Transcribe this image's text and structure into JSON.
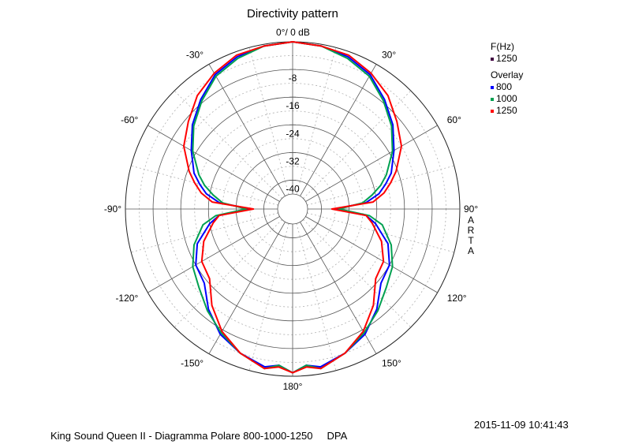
{
  "chart_data": {
    "type": "polar",
    "title": "Directivity pattern",
    "radial_unit_label": "0°/ 0 dB",
    "radial_ticks": [
      "-8",
      "-16",
      "-24",
      "-32",
      "-40"
    ],
    "radial_tick_values": [
      -8,
      -16,
      -24,
      -32,
      -40
    ],
    "r_range_db": [
      -44,
      0
    ],
    "angle_labels": [
      {
        "text": "-30°",
        "angle": -30
      },
      {
        "text": "30°",
        "angle": 30
      },
      {
        "text": "-60°",
        "angle": -60
      },
      {
        "text": "60°",
        "angle": 60
      },
      {
        "text": "-90°",
        "angle": -90
      },
      {
        "text": "90°",
        "angle": 90
      },
      {
        "text": "-120°",
        "angle": -120
      },
      {
        "text": "120°",
        "angle": 120
      },
      {
        "text": "-150°",
        "angle": -150
      },
      {
        "text": "150°",
        "angle": 150
      },
      {
        "text": "180°",
        "angle": 180
      }
    ],
    "side_label": [
      "A",
      "R",
      "T",
      "A"
    ],
    "legend": {
      "main_title": "F(Hz)",
      "main_entry": "1250",
      "overlay_title": "Overlay",
      "placement": "right",
      "entries": [
        "800",
        "1000",
        "1250"
      ]
    },
    "angles_deg": [
      0,
      10,
      20,
      30,
      40,
      50,
      60,
      70,
      75,
      80,
      85,
      90,
      95,
      100,
      110,
      120,
      130,
      140,
      150,
      160,
      170,
      175,
      180
    ],
    "series": [
      {
        "name": "800",
        "color": "#0000ff",
        "values_db": [
          0,
          -0.5,
          -1.5,
          -3.5,
          -7,
          -10.5,
          -14.5,
          -18,
          -20.5,
          -23,
          -27,
          -36,
          -27,
          -24,
          -19,
          -16,
          -15,
          -10.5,
          -6.5,
          -4,
          -2,
          -3,
          -1
        ]
      },
      {
        "name": "1000",
        "color": "#00a050",
        "values_db": [
          0,
          -0.5,
          -2,
          -4,
          -7.5,
          -11,
          -15,
          -19.5,
          -22,
          -25,
          -28,
          -35,
          -26,
          -22,
          -18,
          -15,
          -13,
          -10,
          -7,
          -4,
          -1.5,
          -3,
          -1
        ]
      },
      {
        "name": "1250",
        "color": "#ff0000",
        "values_db": [
          0,
          -0.5,
          -1,
          -3,
          -5.5,
          -9,
          -12,
          -16.5,
          -19,
          -21.5,
          -25,
          -37,
          -27,
          -25,
          -21,
          -18,
          -17,
          -12,
          -7.5,
          -4,
          -1.5,
          -2.5,
          -1
        ]
      }
    ],
    "main_series_color": "#400040"
  },
  "footer": {
    "timestamp": "2015-11-09  10:41:43",
    "caption": "King Sound Queen II - Diagramma Polare 800-1000-1250     DPA"
  }
}
